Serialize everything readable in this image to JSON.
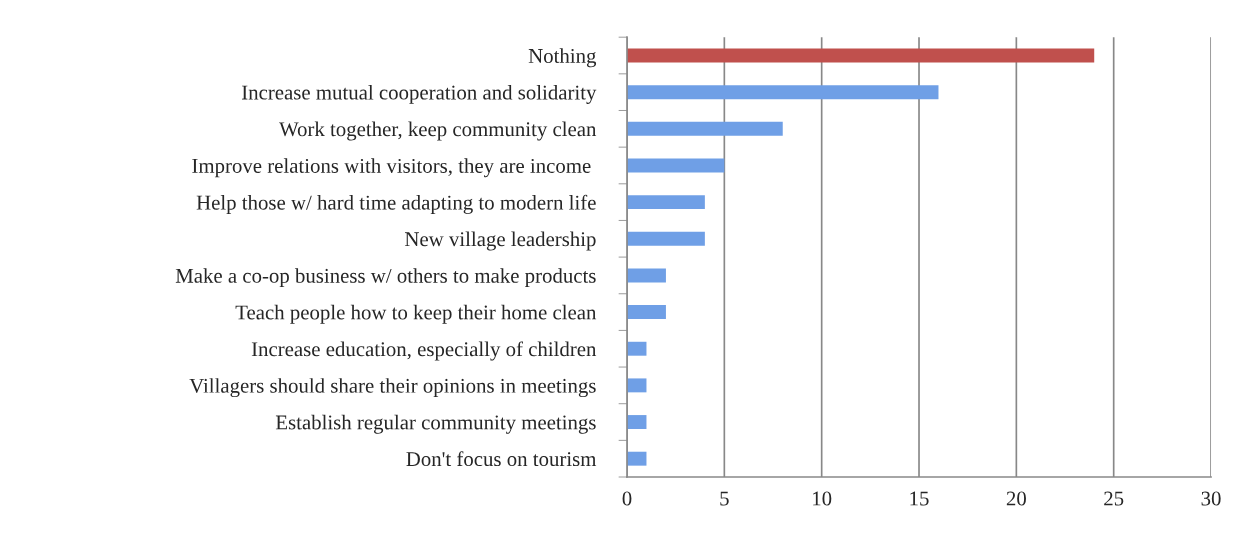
{
  "chart_data": {
    "type": "bar",
    "orientation": "horizontal",
    "categories": [
      "Nothing",
      "Increase mutual cooperation and solidarity",
      "Work together, keep community clean",
      "Improve relations with visitors, they are income ",
      "Help those w/ hard time adapting to modern life",
      "New village leadership",
      "Make a co-op business w/ others to make products",
      "Teach people how to keep their home clean",
      "Increase education, especially of children",
      "Villagers should share their opinions in meetings",
      "Establish regular community meetings",
      "Don't focus on tourism"
    ],
    "values": [
      24,
      16,
      8,
      5,
      4,
      4,
      2,
      2,
      1,
      1,
      1,
      1
    ],
    "colors": [
      "#c0504d",
      "#6f9fe6",
      "#6f9fe6",
      "#6f9fe6",
      "#6f9fe6",
      "#6f9fe6",
      "#6f9fe6",
      "#6f9fe6",
      "#6f9fe6",
      "#6f9fe6",
      "#6f9fe6",
      "#6f9fe6"
    ],
    "xlim": [
      0,
      30
    ],
    "xticks": [
      0,
      5,
      10,
      15,
      20,
      25,
      30
    ],
    "grid": "x",
    "legend": false
  }
}
